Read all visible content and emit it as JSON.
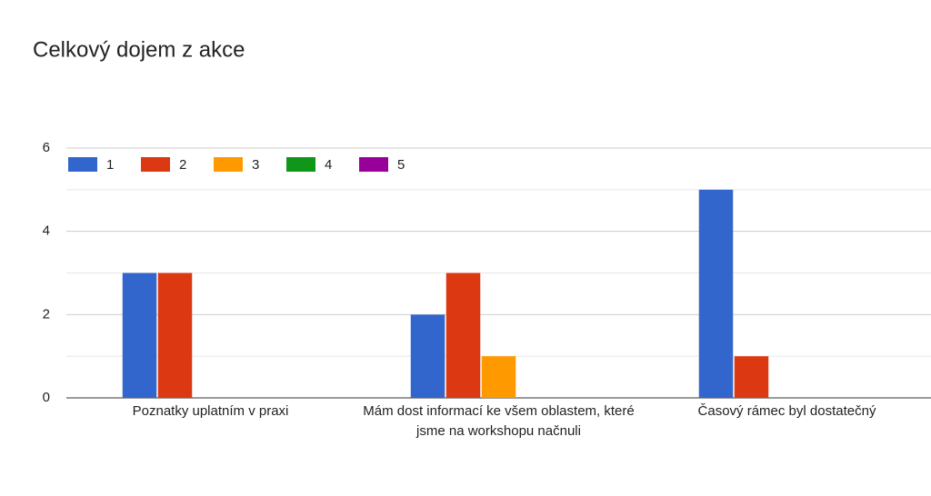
{
  "chart_data": {
    "type": "bar",
    "title": "Celkový dojem z akce",
    "categories": [
      "Poznatky uplatním v praxi",
      "Mám dost informací ke všem oblastem, které jsme na workshopu načnuli",
      "Časový rámec byl dostatečný"
    ],
    "series": [
      {
        "name": "1",
        "color": "#3366cc",
        "values": [
          3,
          2,
          5
        ]
      },
      {
        "name": "2",
        "color": "#dc3912",
        "values": [
          3,
          3,
          1
        ]
      },
      {
        "name": "3",
        "color": "#ff9900",
        "values": [
          0,
          1,
          0
        ]
      },
      {
        "name": "4",
        "color": "#109618",
        "values": [
          0,
          0,
          0
        ]
      },
      {
        "name": "5",
        "color": "#990099",
        "values": [
          0,
          0,
          0
        ]
      }
    ],
    "ylim": [
      0,
      6
    ],
    "yticks": [
      0,
      2,
      4,
      6
    ],
    "minor_yticks": [
      1,
      3,
      5
    ],
    "grid": true,
    "legend": "top"
  }
}
